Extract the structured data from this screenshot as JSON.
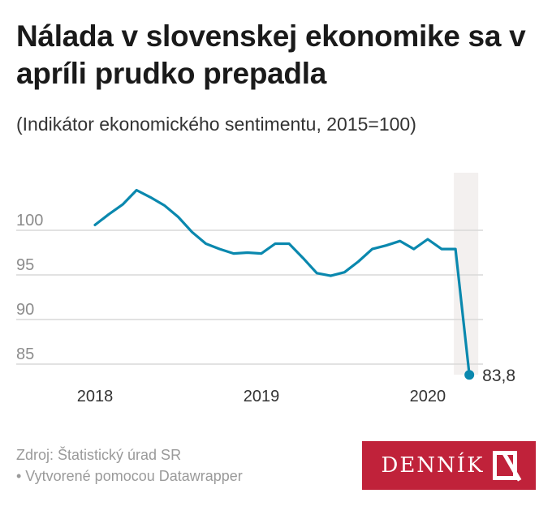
{
  "title": "Nálada v slovenskej ekonomike sa v apríli prudko prepadla",
  "subtitle": "(Indikátor ekonomického sentimentu, 2015=100)",
  "footer": {
    "source": "Zdroj: Štatistický úrad SR",
    "credit": "• Vytvorené pomocou Datawrapper"
  },
  "logo": {
    "text": "DENNÍK",
    "mark": "N"
  },
  "colors": {
    "line": "#0a88ae",
    "grid": "#d9d9d9",
    "highlight": "#f3f0ef",
    "logo_bg": "#c0223a"
  },
  "chart_data": {
    "type": "line",
    "title": "Nálada v slovenskej ekonomike sa v apríli prudko prepadla",
    "ylabel": "Indikátor ekonomického sentimentu (2015=100)",
    "xlabel": "",
    "x_start": "2018-01",
    "x_end": "2020-04",
    "frequency": "monthly",
    "ylim": [
      83,
      105
    ],
    "yticks": [
      85,
      90,
      95,
      100
    ],
    "ytick_labels": [
      "85",
      "90",
      "95",
      "100"
    ],
    "xticks": [
      2018,
      2019,
      2020
    ],
    "xtick_labels": [
      "2018",
      "2019",
      "2020"
    ],
    "grid": true,
    "highlight_range": [
      "2020-03",
      "2020-04"
    ],
    "series": [
      {
        "name": "Indikátor ekonomického sentimentu",
        "values": [
          100.6,
          101.8,
          102.9,
          104.5,
          103.7,
          102.8,
          101.5,
          99.8,
          98.5,
          97.9,
          97.4,
          97.5,
          97.4,
          98.5,
          98.5,
          96.9,
          95.2,
          94.9,
          95.3,
          96.5,
          97.9,
          98.3,
          98.8,
          97.9,
          99.0,
          97.9,
          97.9,
          83.8
        ]
      }
    ],
    "annotations": [
      {
        "x": "2020-04",
        "label": "83,8"
      }
    ]
  }
}
